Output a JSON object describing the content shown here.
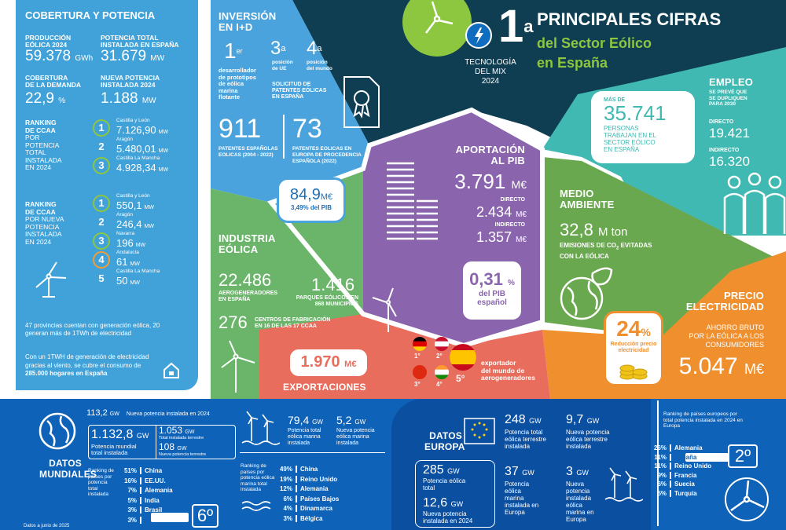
{
  "header": {
    "rank": "1",
    "rank_sup": "a",
    "title": "PRINCIPALES CIFRAS",
    "subtitle1": "del Sector Eólico",
    "subtitle2": "en España",
    "tech1": "TECNOLOGÍA",
    "tech2": "DEL MIX",
    "tech3": "2024"
  },
  "cobertura": {
    "title": "COBERTURA Y POTENCIA",
    "produccion_label1": "PRODUCCIÓN",
    "produccion_label2": "EÓLICA 2024",
    "produccion_value": "59.378",
    "produccion_unit": "GWh",
    "potencia_label1": "POTENCIA TOTAL",
    "potencia_label2": "INSTALADA EN ESPAÑA",
    "potencia_value": "31.679",
    "potencia_unit": "MW",
    "cobertura_label1": "COBERTURA",
    "cobertura_label2": "DE LA DEMANDA",
    "cobertura_value": "22,9",
    "cobertura_unit": "%",
    "nueva_label1": "NUEVA POTENCIA",
    "nueva_label2": "INSTALADA 2024",
    "nueva_value": "1.188",
    "nueva_unit": "MW",
    "rank1_title": [
      "RANKING",
      "DE CCAA",
      "POR",
      "POTENCIA",
      "TOTAL",
      "INSTALADA",
      "EN 2024"
    ],
    "rank1": [
      {
        "n": "1",
        "name": "Castilla y León",
        "value": "7.126,90",
        "unit": "MW",
        "color": "#8dc63f"
      },
      {
        "n": "2",
        "name": "Aragón",
        "value": "5.480,01",
        "unit": "MW",
        "color": "#41a2d9"
      },
      {
        "n": "3",
        "name": "Castilla La Mancha",
        "value": "4.928,34",
        "unit": "MW",
        "color": "#8dc63f"
      }
    ],
    "rank2_title": [
      "RANKING",
      "DE CCAA",
      "POR NUEVA",
      "POTENCIA",
      "INSTALADA",
      "EN 2024"
    ],
    "rank2": [
      {
        "n": "1",
        "name": "Castilla y León",
        "value": "550,1",
        "unit": "MW",
        "color": "#8dc63f"
      },
      {
        "n": "2",
        "name": "Aragón",
        "value": "246,4",
        "unit": "MW",
        "color": "#41a2d9"
      },
      {
        "n": "3",
        "name": "Navarra",
        "value": "196",
        "unit": "MW",
        "color": "#8dc63f"
      },
      {
        "n": "4",
        "name": "Andalucía",
        "value": "61",
        "unit": "MW",
        "color": "#f39c32"
      },
      {
        "n": "5",
        "name": "Castilla La Mancha",
        "value": "50",
        "unit": "MW",
        "color": "#41a2d9"
      }
    ],
    "note1": "47 provincias cuentan con generación eólica, 20 generan más de 1TWh de electricidad",
    "note2_a": "Con un 1TWH de generación de electricidad gracias al viento, se cubre el consumo de ",
    "note2_b": "285.000 hogares en España"
  },
  "inversion": {
    "title1": "INVERSIÓN",
    "title2": "EN I+D",
    "first": "1",
    "first_sup": "er",
    "first_desc": [
      "desarrollador",
      "de prototipos",
      "de eólica",
      "marina",
      "flotante"
    ],
    "third": "3",
    "third_sup": "a",
    "third_desc": [
      "posición",
      "de UE"
    ],
    "fourth": "4",
    "fourth_sup": "a",
    "fourth_desc": [
      "posición",
      "del mundo"
    ],
    "solicitud": [
      "SOLICITUD DE",
      "PATENTES EÓLICAS",
      "EN ESPAÑA"
    ],
    "pat1_value": "911",
    "pat1_desc": [
      "PATENTES ESPAÑOLAS",
      "EOLICAS (2004 - 2022)"
    ],
    "pat2_value": "73",
    "pat2_desc": [
      "PATENTES EOLICAS EN",
      "EUROPA DE PROCEDENCIA",
      "ESPAÑOLA (2022)"
    ],
    "pib_value": "84,9",
    "pib_unit": "M€",
    "pib_pct": "3,49% del PIB"
  },
  "aportacion": {
    "title1": "APORTACIÓN",
    "title2": "AL PIB",
    "total": "3.791",
    "total_unit": "M€",
    "directo_label": "DIRECTO",
    "directo": "2.434",
    "directo_unit": "M€",
    "indirecto_label": "INDIRECTO",
    "indirecto": "1.357",
    "indirecto_unit": "M€",
    "pct": "0,31",
    "pct_unit": "%",
    "pct_desc1": "del PIB",
    "pct_desc2": "español"
  },
  "empleo": {
    "mas_de": "MÁS DE",
    "value": "35.741",
    "desc": [
      "PERSONAS",
      "TRABAJAN EN EL",
      "SECTOR EÓLICO",
      "EN ESPAÑA"
    ],
    "title": "EMPLEO",
    "prevee": [
      "SE PREVÉ QUE",
      "SE DUPLIQUEN",
      "PARA 2030"
    ],
    "directo_label": "DIRECTO",
    "directo": "19.421",
    "indirecto_label": "INDIRECTO",
    "indirecto": "16.320"
  },
  "medio": {
    "title1": "MEDIO",
    "title2": "AMBIENTE",
    "value": "32,8",
    "unit": "M ton",
    "desc1": "EMISIONES DE CO",
    "desc1_sub": "2",
    "desc1_end": " EVITADAS",
    "desc2": "CON LA EÓLICA"
  },
  "industria": {
    "title1": "INDUSTRIA",
    "title2": "EÓLICA",
    "aero_value": "22.486",
    "aero_desc": [
      "AEROGENERADORES",
      "EN ESPAÑA"
    ],
    "parques_value": "1.416",
    "parques_desc": [
      "PARQUES EÓLICOS EN",
      "868 MUNICIPIOS"
    ],
    "centros_value": "276",
    "centros_desc": [
      "CENTROS DE FABRICACIÓN",
      "EN 16 DE LAS 17 CCAA"
    ]
  },
  "exportaciones": {
    "value": "1.970",
    "unit": "M€",
    "title": "EXPORTACIONES",
    "flags": [
      {
        "label": "1°",
        "colors": [
          "#000000",
          "#dd0000",
          "#ffce00"
        ]
      },
      {
        "label": "2°",
        "colors": [
          "#c8102e",
          "#ffffff",
          "#c8102e"
        ]
      },
      {
        "label": "3°",
        "colors": [
          "#de2910",
          "#de2910",
          "#de2910"
        ]
      },
      {
        "label": "4°",
        "colors": [
          "#ff9933",
          "#ffffff",
          "#138808"
        ]
      }
    ],
    "spain_label": "5°",
    "exportador": [
      "exportador",
      "del mundo de",
      "aerogeneradores"
    ]
  },
  "precio": {
    "title1": "PRECIO",
    "title2": "ELECTRICIDAD",
    "pct": "24",
    "pct_unit": "%",
    "pct_desc": [
      "Reducción precio",
      "electricidad"
    ],
    "ahorro": [
      "AHORRO BRUTO",
      "POR LA EÓLICA A LOS",
      "CONSUMIDORES"
    ],
    "value": "5.047",
    "unit": "M€"
  },
  "mundiales": {
    "title1": "DATOS",
    "title2": "MUNDIALES",
    "nueva_value": "113,2",
    "nueva_unit": "GW",
    "nueva_desc": "Nueva potencia instalada en 2024",
    "total_value": "1.132,8",
    "total_unit": "GW",
    "total_desc": [
      "Potencia mundial",
      "total instalada"
    ],
    "terr_value": "1.053",
    "terr_unit": "GW",
    "terr_desc": "Total instalada terrestre",
    "nterr_value": "108",
    "nterr_unit": "GW",
    "nterr_desc": "Nueva potencia terrestre",
    "ranking_desc": [
      "Ranking de",
      "países por",
      "potencia",
      "total",
      "instalada"
    ],
    "ranking": [
      {
        "pct": "51%",
        "name": "China"
      },
      {
        "pct": "16%",
        "name": "EE.UU."
      },
      {
        "pct": "7%",
        "name": "Alemania"
      },
      {
        "pct": "5%",
        "name": "India"
      },
      {
        "pct": "3%",
        "name": "Brasil"
      },
      {
        "pct": "3%",
        "name": "España"
      }
    ],
    "spain_rank": "6º",
    "marina_value": "79,4",
    "marina_unit": "GW",
    "marina_desc": [
      "Potencia total",
      "eólica marina",
      "instalada"
    ],
    "nmarina_value": "5,2",
    "nmarina_unit": "GW",
    "nmarina_desc": [
      "Nueva potencia",
      "eólica marina",
      "instalada"
    ],
    "marina_rank_desc": [
      "Ranking de",
      "países por",
      "potencia eólica",
      "marina total",
      "instalada"
    ],
    "marina_ranking": [
      {
        "pct": "49%",
        "name": "China"
      },
      {
        "pct": "19%",
        "name": "Reino Unido"
      },
      {
        "pct": "12%",
        "name": "Alemania"
      },
      {
        "pct": "6%",
        "name": "Países Bajos"
      },
      {
        "pct": "4%",
        "name": "Dinamarca"
      },
      {
        "pct": "3%",
        "name": "Bélgica"
      }
    ],
    "fecha": "Datos a junio de 2025"
  },
  "europa": {
    "title1": "DATOS",
    "title2": "EUROPA",
    "total_value": "285",
    "total_unit": "GW",
    "total_desc": [
      "Potencia eólica",
      "total"
    ],
    "nueva_value": "12,6",
    "nueva_unit": "GW",
    "nueva_desc": [
      "Nueva potencia",
      "instalada en 2024"
    ],
    "terr_value": "248",
    "terr_unit": "GW",
    "terr_desc": [
      "Potencia total",
      "eólica terrestre",
      "instalada"
    ],
    "nterr_value": "9,7",
    "nterr_unit": "GW",
    "nterr_desc": [
      "Nueva potencia",
      "eólica terrestre",
      "instalada"
    ],
    "marina_value": "37",
    "marina_unit": "GW",
    "marina_desc": [
      "Potencia",
      "eólica",
      "marina",
      "instalada en",
      "Europa"
    ],
    "nmarina_value": "3",
    "nmarina_unit": "GW",
    "nmarina_desc": [
      "Nueva",
      "potencia",
      "instalada",
      "eólica",
      "marina en",
      "Europa"
    ],
    "ranking_desc": [
      "Ranking de países europeos por",
      "total potencia instalada en 2024 en",
      "Europa"
    ],
    "ranking": [
      {
        "pct": "26%",
        "name": "Alemania"
      },
      {
        "pct": "11%",
        "name": "España"
      },
      {
        "pct": "11%",
        "name": "Reino Unido"
      },
      {
        "pct": "9%",
        "name": "Francia"
      },
      {
        "pct": "6%",
        "name": "Suecia"
      },
      {
        "pct": "5%",
        "name": "Turquía"
      }
    ],
    "spain_rank": "2º"
  }
}
